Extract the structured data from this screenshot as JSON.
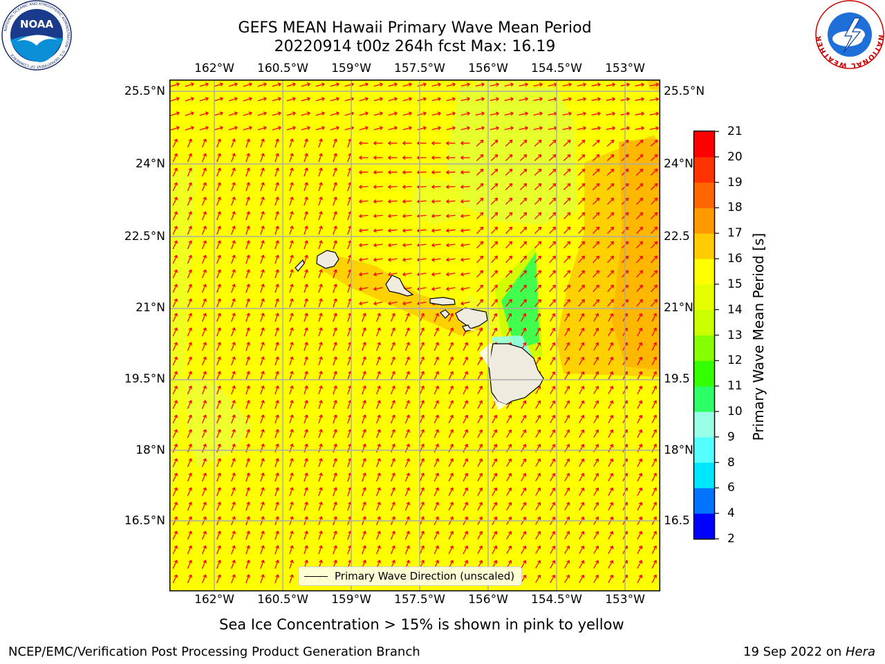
{
  "title": {
    "line1": "GEFS MEAN Hawaii Primary Wave Mean Period",
    "line2": "20220914 t00z 264h fcst   Max: 16.19"
  },
  "map": {
    "lon_ticks": [
      "162°W",
      "160.5°W",
      "159°W",
      "157.5°W",
      "156°W",
      "154.5°W",
      "153°W"
    ],
    "lat_ticks_left": [
      "25.5°N",
      "24°N",
      "22.5°N",
      "21°N",
      "19.5°N",
      "18°N",
      "16.5°N"
    ],
    "lat_ticks_right": [
      "25.5°N",
      "24°N",
      "22.5",
      "21°N",
      "19.5",
      "18°N",
      "16.5"
    ],
    "legend_label": "Primary Wave Direction (unscaled)",
    "arrow_color": "#ff0000",
    "background_value_color": "#ffff00"
  },
  "colorbar": {
    "label": "Primary Wave Mean Period [s]",
    "ticks": [
      "2",
      "4",
      "6",
      "8",
      "9",
      "10",
      "11",
      "12",
      "13",
      "14",
      "15",
      "16",
      "17",
      "18",
      "19",
      "20",
      "21"
    ],
    "colors": [
      "#0000ff",
      "#0073ff",
      "#00e6ff",
      "#55ffff",
      "#99ffe6",
      "#2dff66",
      "#33ff00",
      "#88ff00",
      "#ccff00",
      "#e6ff00",
      "#ffff00",
      "#ffcc00",
      "#ff9900",
      "#ff6600",
      "#ff3300",
      "#ff0000"
    ]
  },
  "logos": {
    "left": {
      "text": "NOAA",
      "ring_text": "NATIONAL OCEANIC AND ATMOSPHERIC ADMINISTRATION · U.S. DEPARTMENT OF COMMERCE"
    },
    "right": {
      "ring_text": "NATIONAL WEATHER SERVICE"
    }
  },
  "note": "Sea Ice Concentration > 15% is shown in pink to yellow",
  "footer": {
    "left": "NCEP/EMC/Verification Post Processing Product Generation Branch",
    "right_date": "19 Sep 2022 on ",
    "right_machine": "Hera"
  }
}
